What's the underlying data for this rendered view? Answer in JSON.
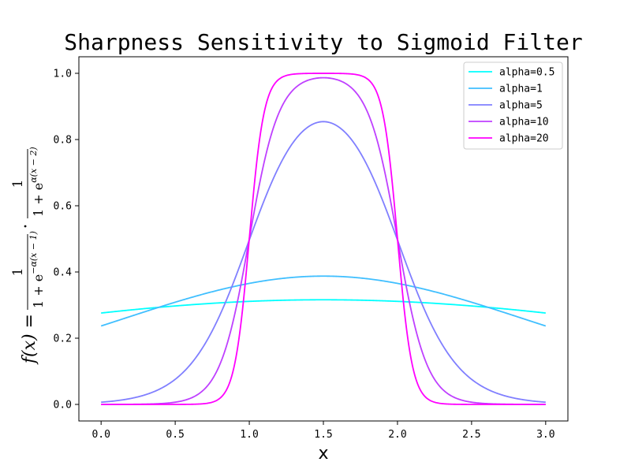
{
  "chart_data": {
    "type": "line",
    "title": "Sharpness Sensitivity to Sigmoid Filter",
    "xlabel": "x",
    "ylabel": {
      "lhs": "f(x) =",
      "term1": {
        "num": "1",
        "den_base": "1 + e",
        "den_exp": "−α(x − 1)"
      },
      "dot": "·",
      "term2": {
        "num": "1",
        "den_base": "1 + e",
        "den_exp": "α(x − 2)"
      }
    },
    "xlim": [
      -0.15,
      3.15
    ],
    "ylim": [
      -0.05,
      1.05
    ],
    "xticks": [
      0.0,
      0.5,
      1.0,
      1.5,
      2.0,
      2.5,
      3.0
    ],
    "xtick_labels": [
      "0.0",
      "0.5",
      "1.0",
      "1.5",
      "2.0",
      "2.5",
      "3.0"
    ],
    "yticks": [
      0.0,
      0.2,
      0.4,
      0.6,
      0.8,
      1.0
    ],
    "ytick_labels": [
      "0.0",
      "0.2",
      "0.4",
      "0.6",
      "0.8",
      "1.0"
    ],
    "grid": false,
    "legend_position": "top-right",
    "x_range": [
      0,
      3
    ],
    "series": [
      {
        "name": "alpha=0.5",
        "alpha": 0.5,
        "color": "#00ffff"
      },
      {
        "name": "alpha=1",
        "alpha": 1,
        "color": "#40bfff"
      },
      {
        "name": "alpha=5",
        "alpha": 5,
        "color": "#807fff"
      },
      {
        "name": "alpha=10",
        "alpha": 10,
        "color": "#bf40ff"
      },
      {
        "name": "alpha=20",
        "alpha": 20,
        "color": "#ff00ff"
      }
    ]
  }
}
